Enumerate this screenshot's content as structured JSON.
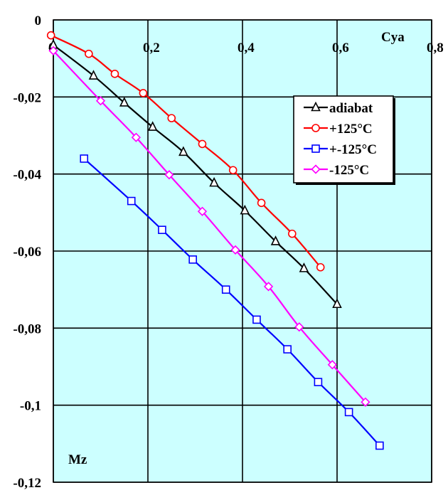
{
  "chart_data": {
    "type": "line",
    "xlabel": "Cya",
    "ylabel": "Mz",
    "xlim": [
      0,
      0.8
    ],
    "ylim": [
      -0.12,
      0
    ],
    "x_ticks": [
      "0",
      "0,2",
      "0,4",
      "0,6",
      "0,8"
    ],
    "y_ticks": [
      "0",
      "-0,02",
      "-0,04",
      "-0,06",
      "-0,08",
      "-0,1",
      "-0,12"
    ],
    "grid": true,
    "background": "#ccffff",
    "legend_position": "top-right",
    "series": [
      {
        "name": "adiabat",
        "color": "#000000",
        "marker": "triangle",
        "points": [
          [
            0.0,
            -0.0065
          ],
          [
            0.085,
            -0.0145
          ],
          [
            0.15,
            -0.0215
          ],
          [
            0.21,
            -0.0278
          ],
          [
            0.275,
            -0.0343
          ],
          [
            0.34,
            -0.0423
          ],
          [
            0.405,
            -0.0495
          ],
          [
            0.47,
            -0.0575
          ],
          [
            0.53,
            -0.0645
          ],
          [
            0.6,
            -0.0738
          ]
        ]
      },
      {
        "name": "+125°C",
        "color": "#ff0000",
        "marker": "circle",
        "points": [
          [
            -0.005,
            -0.004
          ],
          [
            0.075,
            -0.0088
          ],
          [
            0.13,
            -0.014
          ],
          [
            0.19,
            -0.019
          ],
          [
            0.25,
            -0.0255
          ],
          [
            0.315,
            -0.0322
          ],
          [
            0.38,
            -0.039
          ],
          [
            0.44,
            -0.0475
          ],
          [
            0.505,
            -0.0555
          ],
          [
            0.565,
            -0.0642
          ]
        ]
      },
      {
        "name": "+-125°C",
        "color": "#0000ff",
        "marker": "square",
        "points": [
          [
            0.065,
            -0.036
          ],
          [
            0.165,
            -0.047
          ],
          [
            0.23,
            -0.0545
          ],
          [
            0.295,
            -0.0622
          ],
          [
            0.365,
            -0.07
          ],
          [
            0.43,
            -0.0778
          ],
          [
            0.495,
            -0.0855
          ],
          [
            0.56,
            -0.094
          ],
          [
            0.625,
            -0.1018
          ],
          [
            0.69,
            -0.1105
          ]
        ]
      },
      {
        "name": "-125°C",
        "color": "#ff00ff",
        "marker": "diamond",
        "points": [
          [
            0.0,
            -0.008
          ],
          [
            0.1,
            -0.021
          ],
          [
            0.175,
            -0.0305
          ],
          [
            0.245,
            -0.0402
          ],
          [
            0.315,
            -0.0497
          ],
          [
            0.385,
            -0.0597
          ],
          [
            0.455,
            -0.0692
          ],
          [
            0.52,
            -0.0797
          ],
          [
            0.59,
            -0.0895
          ],
          [
            0.66,
            -0.0992
          ]
        ]
      }
    ]
  }
}
